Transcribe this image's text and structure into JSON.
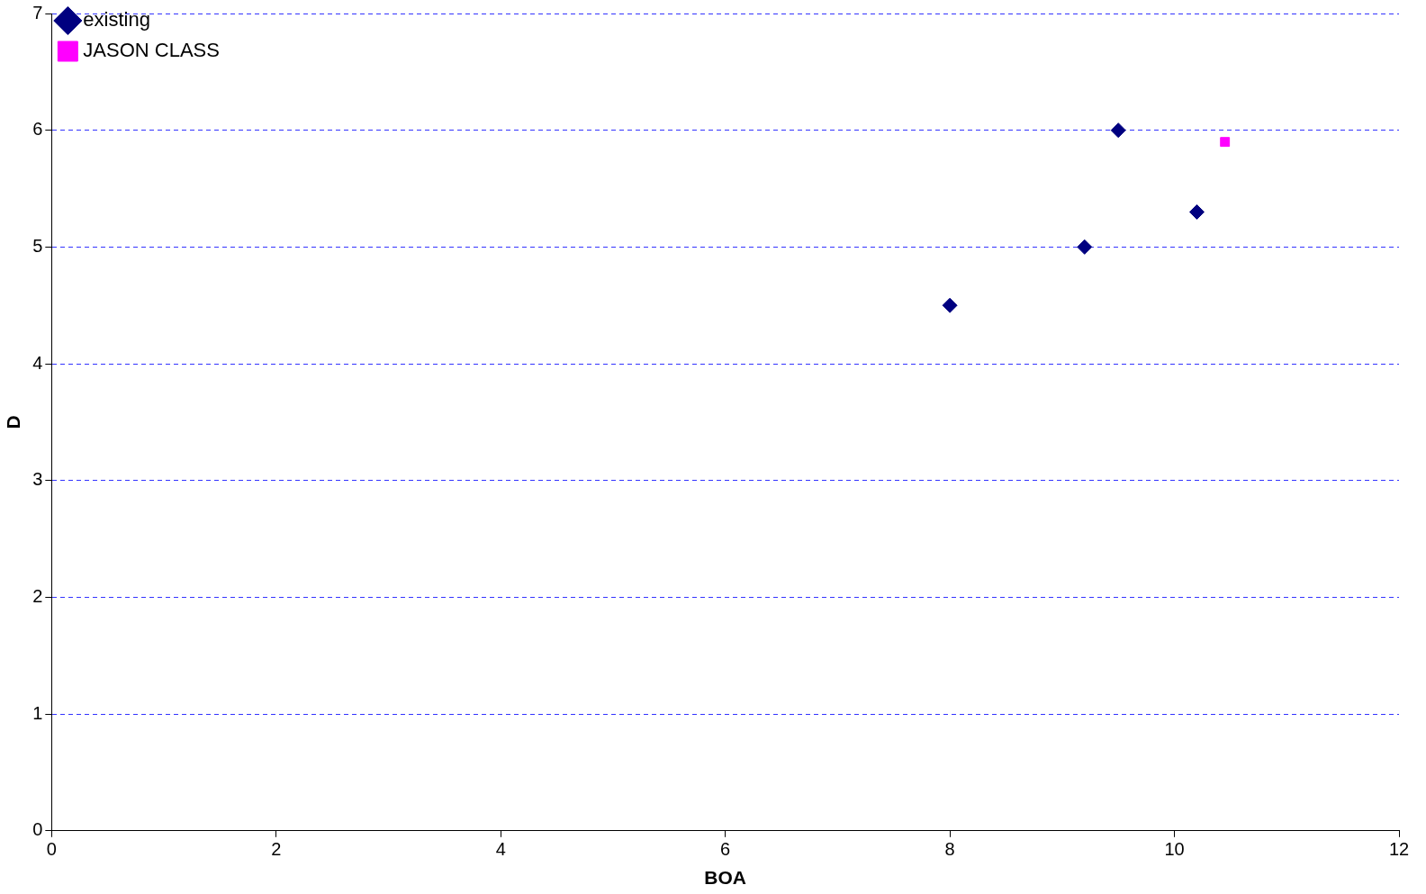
{
  "chart_data": {
    "type": "scatter",
    "xlabel": "BOA",
    "ylabel": "D",
    "series": [
      {
        "name": "existing",
        "color": "#000080",
        "marker": "diamond",
        "x": [
          8,
          9.2,
          9.5,
          10.2
        ],
        "values": [
          4.5,
          5,
          6,
          5.3
        ]
      },
      {
        "name": "JASON CLASS",
        "color": "#ff00ff",
        "marker": "square",
        "x": [
          10.45
        ],
        "values": [
          5.9
        ]
      }
    ],
    "xlim": [
      0,
      12
    ],
    "xticks": [
      0,
      2,
      4,
      6,
      8,
      10,
      12
    ],
    "ylim": [
      0,
      7
    ],
    "yticks": [
      0,
      1,
      2,
      3,
      4,
      5,
      6,
      7
    ],
    "grid": "y",
    "legend": "top left"
  }
}
